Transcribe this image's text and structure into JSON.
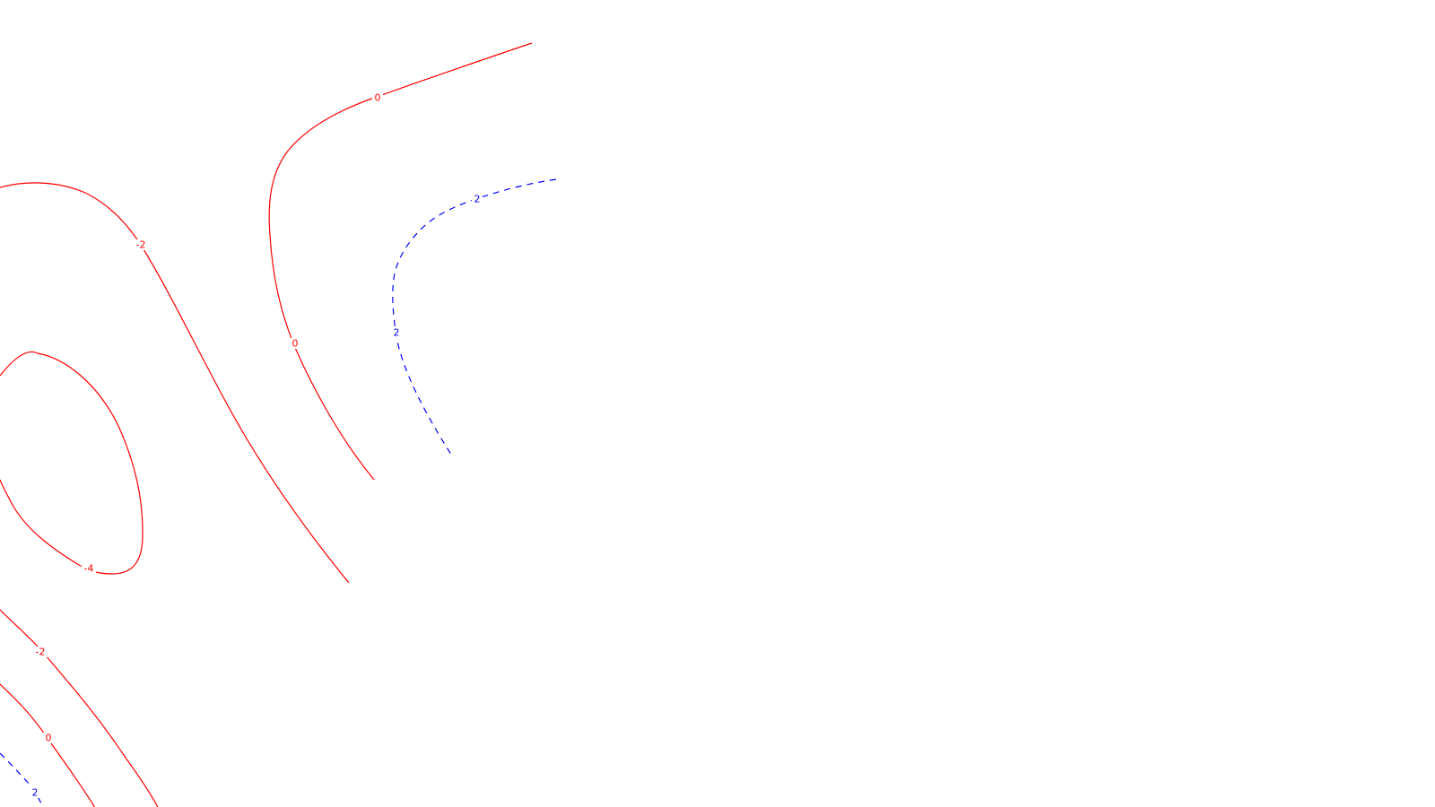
{
  "chart_data": {
    "type": "contour",
    "title": "",
    "xlabel": "",
    "ylabel": "",
    "axes_visible": false,
    "grid": false,
    "legend": "none",
    "colors": {
      "negative_and_zero": "#ff0000",
      "positive": "#0000ff",
      "background": "#ffffff"
    },
    "line_styles": {
      "negative_and_zero": "solid",
      "positive": "dashed"
    },
    "levels": [
      -4,
      -2,
      0,
      2
    ],
    "contour_labels": [
      {
        "level": -2,
        "text": "-2"
      },
      {
        "level": -2,
        "text": "-2"
      },
      {
        "level": -4,
        "text": "-4"
      },
      {
        "level": 0,
        "text": "0"
      },
      {
        "level": 0,
        "text": "0"
      },
      {
        "level": 0,
        "text": "0"
      },
      {
        "level": 2,
        "text": "2"
      },
      {
        "level": 2,
        "text": "2"
      },
      {
        "level": 2,
        "text": "2"
      }
    ]
  }
}
